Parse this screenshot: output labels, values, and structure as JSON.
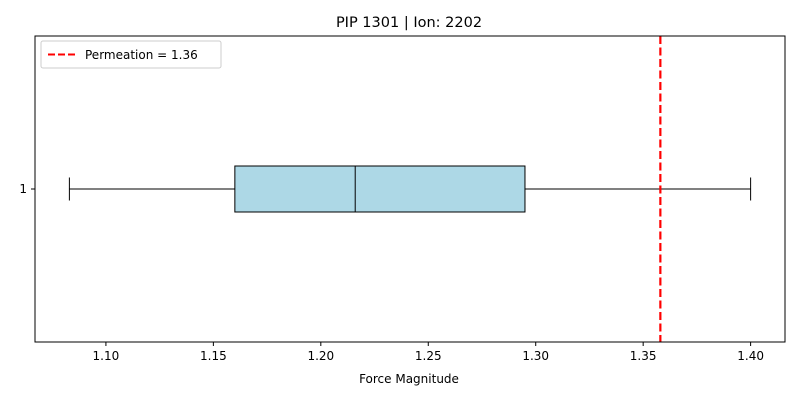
{
  "chart_data": {
    "type": "boxplot",
    "orientation": "horizontal",
    "title": "PIP 1301 | Ion: 2202",
    "xlabel": "Force Magnitude",
    "ylabel": "",
    "xlim": [
      1.067,
      1.416
    ],
    "xticks": [
      "1.10",
      "1.15",
      "1.20",
      "1.25",
      "1.30",
      "1.35",
      "1.40"
    ],
    "yticks": [
      "1"
    ],
    "grid": false,
    "legend_position": "top-left",
    "boxes": [
      {
        "label": "1",
        "whisker_low": 1.083,
        "q1": 1.16,
        "median": 1.216,
        "q3": 1.295,
        "whisker_high": 1.4,
        "fill_color": "#add8e6"
      }
    ],
    "reference_line": {
      "label": "Permeation = 1.36",
      "value": 1.358,
      "color": "#ff0000",
      "style": "dashed"
    }
  }
}
